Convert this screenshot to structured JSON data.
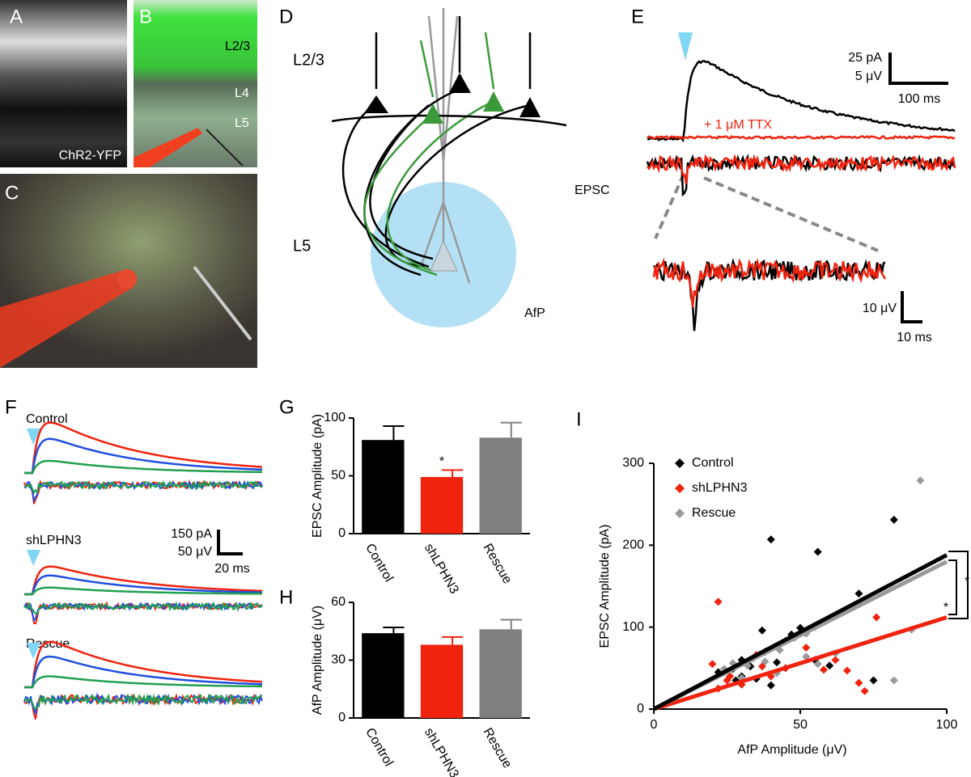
{
  "figure": {
    "labels": [
      "A",
      "B",
      "C",
      "D",
      "E",
      "F",
      "G",
      "H",
      "I"
    ],
    "a_text": "ChR2-YFP",
    "b_layers": [
      "L2/3",
      "L4",
      "L5"
    ],
    "d_layers": [
      "L2/3",
      "L5"
    ],
    "d_outputs": [
      "EPSC",
      "AfP"
    ],
    "e_scale": [
      "25 pA",
      "5 μV",
      "100 ms"
    ],
    "e_ttx": "+ 1 μM TTX",
    "e_inset_scale": [
      "10 μV",
      "10 ms"
    ],
    "f_conditions": [
      "Control",
      "shLPHN3",
      "Rescue"
    ],
    "f_scale": [
      "150 pA",
      "50 μV",
      "20 ms"
    ]
  },
  "chart_data": [
    {
      "type": "bar",
      "y_label": "EPSC Amplitude (pA)",
      "categories": [
        "Control",
        "shLPHN3",
        "Rescue"
      ],
      "values": [
        81,
        49,
        83
      ],
      "errors": [
        12,
        6,
        13
      ],
      "colors": [
        "#000000",
        "#f0230f",
        "#7f7f7f"
      ],
      "ylim": [
        0,
        100
      ],
      "yticks": [
        0,
        50,
        100
      ],
      "annotations": [
        "*"
      ]
    },
    {
      "type": "bar",
      "y_label": "AfP Amplitude (μV)",
      "categories": [
        "Control",
        "shLPHN3",
        "Rescue"
      ],
      "values": [
        44,
        38,
        46
      ],
      "errors": [
        3,
        4,
        5
      ],
      "colors": [
        "#000000",
        "#f0230f",
        "#7f7f7f"
      ],
      "ylim": [
        0,
        60
      ],
      "yticks": [
        0,
        30,
        60
      ]
    },
    {
      "type": "scatter",
      "x_label": "AfP Amplitude (μV)",
      "y_label": "EPSC Amplitude (pA)",
      "xlim": [
        0,
        100
      ],
      "ylim": [
        0,
        300
      ],
      "xticks": [
        0,
        50,
        100
      ],
      "yticks": [
        0,
        100,
        200,
        300
      ],
      "legend": "top-left",
      "annotations": [
        "*",
        "*"
      ],
      "series": [
        {
          "name": "Control",
          "color": "#000000",
          "x": [
            40,
            56,
            82,
            70,
            37,
            47,
            50,
            45,
            38,
            30,
            33,
            42,
            35,
            30,
            27,
            55,
            60,
            40,
            22,
            75,
            28
          ],
          "y": [
            207,
            192,
            231,
            141,
            96,
            91,
            99,
            83,
            70,
            60,
            52,
            57,
            37,
            40,
            49,
            60,
            53,
            29,
            45,
            35,
            35
          ],
          "fit": {
            "x": [
              0,
              100
            ],
            "y": [
              0,
              188
            ]
          }
        },
        {
          "name": "shLPHN3",
          "color": "#f0230f",
          "x": [
            22,
            20,
            22,
            25,
            30,
            35,
            37,
            45,
            52,
            58,
            66,
            70,
            72,
            76,
            62,
            40,
            26
          ],
          "y": [
            131,
            55,
            25,
            35,
            30,
            66,
            52,
            50,
            75,
            48,
            47,
            32,
            22,
            112,
            60,
            40,
            40
          ],
          "fit": {
            "x": [
              0,
              100
            ],
            "y": [
              0,
              112
            ]
          }
        },
        {
          "name": "Rescue",
          "color": "#9a9a9a",
          "x": [
            91,
            88,
            82,
            55,
            52,
            48,
            52,
            43,
            38,
            32,
            24,
            30,
            34,
            62,
            56,
            42,
            27
          ],
          "y": [
            279,
            97,
            35,
            100,
            92,
            87,
            64,
            72,
            58,
            53,
            49,
            38,
            62,
            68,
            55,
            44,
            56
          ],
          "fit": {
            "x": [
              0,
              100
            ],
            "y": [
              0,
              180
            ]
          }
        }
      ]
    }
  ]
}
